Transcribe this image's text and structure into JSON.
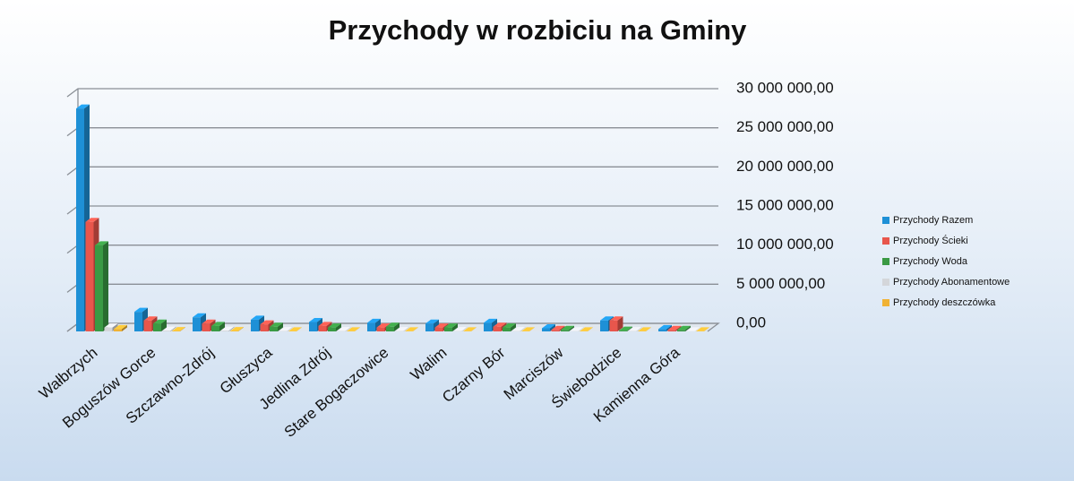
{
  "chart_data": {
    "type": "bar3d",
    "title": "Przychody w rozbiciu na Gminy",
    "categories": [
      "Wałbrzych",
      "Boguszów Gorce",
      "Szczawno-Zdrój",
      "Głuszyca",
      "Jedlina Zdrój",
      "Stare Bogaczowice",
      "Walim",
      "Czarny Bór",
      "Marciszów",
      "Świebodzice",
      "Kamienna Góra"
    ],
    "series": [
      {
        "name": "Przychody Razem",
        "color": "#1e90d6",
        "values": [
          28500000,
          2500000,
          1800000,
          1500000,
          1200000,
          1100000,
          1000000,
          1100000,
          400000,
          1400000,
          300000
        ]
      },
      {
        "name": "Przychody Ścieki",
        "color": "#e8564c",
        "values": [
          14000000,
          1400000,
          1000000,
          900000,
          700000,
          500000,
          500000,
          600000,
          200000,
          1400000,
          200000
        ]
      },
      {
        "name": "Przychody Woda",
        "color": "#3a9a44",
        "values": [
          11000000,
          1000000,
          700000,
          600000,
          500000,
          600000,
          500000,
          500000,
          200000,
          100000,
          200000
        ]
      },
      {
        "name": "Przychody Abonamentowe",
        "color": "#d4d6da",
        "values": [
          500000,
          100000,
          100000,
          50000,
          50000,
          50000,
          50000,
          50000,
          30000,
          50000,
          20000
        ]
      },
      {
        "name": "Przychody deszczówka",
        "color": "#f0b234",
        "values": [
          300000,
          50000,
          50000,
          20000,
          20000,
          10000,
          10000,
          10000,
          10000,
          20000,
          10000
        ]
      }
    ],
    "ylim": [
      0,
      30000000
    ],
    "yticks": [
      {
        "value": 0,
        "label": "0,00"
      },
      {
        "value": 5000000,
        "label": "5 000 000,00"
      },
      {
        "value": 10000000,
        "label": "10 000 000,00"
      },
      {
        "value": 15000000,
        "label": "15 000 000,00"
      },
      {
        "value": 20000000,
        "label": "20 000 000,00"
      },
      {
        "value": 25000000,
        "label": "25 000 000,00"
      },
      {
        "value": 30000000,
        "label": "30 000 000,00"
      }
    ],
    "grid": true,
    "legend": "right"
  }
}
